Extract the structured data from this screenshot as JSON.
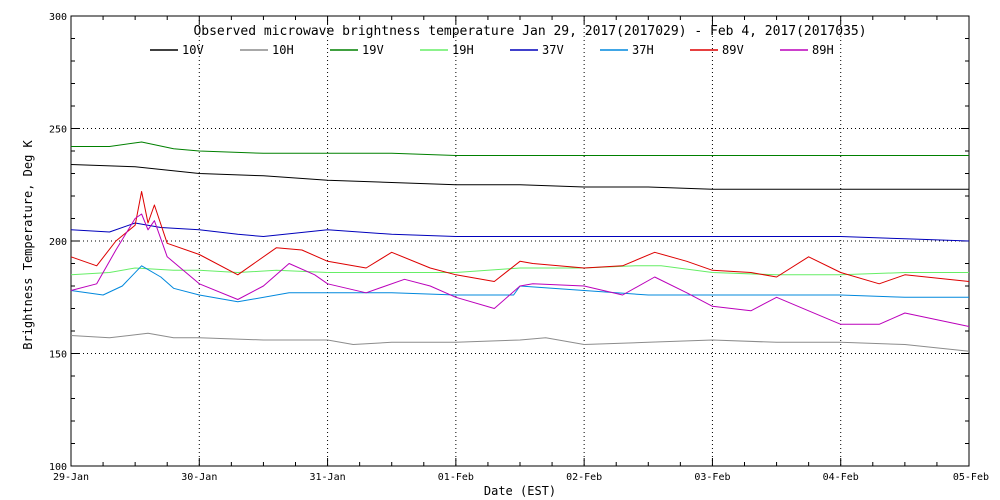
{
  "chart_data": {
    "type": "line",
    "title": "Observed microwave brightness temperature Jan 29, 2017(2017029) - Feb  4, 2017(2017035)",
    "xlabel": "Date (EST)",
    "ylabel": "Brightness Temperature, Deg K",
    "ylim": [
      100,
      300
    ],
    "xlim": [
      0,
      7
    ],
    "x_tick_labels": [
      "29-Jan",
      "30-Jan",
      "31-Jan",
      "01-Feb",
      "02-Feb",
      "03-Feb",
      "04-Feb",
      "05-Feb"
    ],
    "y_ticks": [
      100,
      150,
      200,
      250,
      300
    ],
    "y_grid": [
      150,
      200,
      250
    ],
    "legend_placement": "top",
    "series": [
      {
        "name": "10V",
        "color": "#000000",
        "x": [
          0,
          0.5,
          1,
          1.5,
          2,
          2.5,
          3,
          3.5,
          4,
          4.5,
          5,
          5.5,
          6,
          6.5,
          7
        ],
        "values": [
          234,
          233,
          230,
          229,
          227,
          226,
          225,
          225,
          224,
          224,
          223,
          223,
          223,
          223,
          223
        ]
      },
      {
        "name": "10H",
        "color": "#8c8c8c",
        "x": [
          0,
          0.3,
          0.6,
          0.8,
          1,
          1.5,
          2,
          2.2,
          2.5,
          3,
          3.5,
          3.7,
          4,
          4.5,
          5,
          5.5,
          6,
          6.5,
          7
        ],
        "values": [
          158,
          157,
          159,
          157,
          157,
          156,
          156,
          154,
          155,
          155,
          156,
          157,
          154,
          155,
          156,
          155,
          155,
          154,
          151
        ]
      },
      {
        "name": "19V",
        "color": "#008000",
        "x": [
          0,
          0.3,
          0.55,
          0.8,
          1,
          1.5,
          2,
          2.5,
          3,
          3.5,
          4,
          4.5,
          5,
          5.5,
          6,
          6.5,
          7
        ],
        "values": [
          242,
          242,
          244,
          241,
          240,
          239,
          239,
          239,
          238,
          238,
          238,
          238,
          238,
          238,
          238,
          238,
          238
        ]
      },
      {
        "name": "19H",
        "color": "#66ee66",
        "x": [
          0,
          0.3,
          0.5,
          0.8,
          1,
          1.3,
          1.6,
          2,
          2.5,
          3,
          3.5,
          4,
          4.4,
          4.6,
          5,
          5.5,
          6,
          6.5,
          7
        ],
        "values": [
          185,
          186,
          188,
          187,
          187,
          186,
          187,
          186,
          186,
          186,
          188,
          188,
          189,
          189,
          186,
          185,
          185,
          186,
          186
        ]
      },
      {
        "name": "37V",
        "color": "#0000bb",
        "x": [
          0,
          0.3,
          0.5,
          0.7,
          1,
          1.3,
          1.5,
          2,
          2.5,
          3,
          3.5,
          4,
          4.5,
          5,
          5.5,
          6,
          6.5,
          7
        ],
        "values": [
          205,
          204,
          208,
          206,
          205,
          203,
          202,
          205,
          203,
          202,
          202,
          202,
          202,
          202,
          202,
          202,
          201,
          200
        ]
      },
      {
        "name": "37H",
        "color": "#0088dd",
        "x": [
          0,
          0.25,
          0.4,
          0.55,
          0.7,
          0.8,
          1,
          1.3,
          1.7,
          2,
          2.5,
          3,
          3.45,
          3.5,
          4,
          4.5,
          5,
          5.5,
          6,
          6.5,
          7
        ],
        "values": [
          178,
          176,
          180,
          189,
          184,
          179,
          176,
          173,
          177,
          177,
          177,
          176,
          176,
          180,
          178,
          176,
          176,
          176,
          176,
          175,
          175
        ]
      },
      {
        "name": "89V",
        "color": "#dd0000",
        "x": [
          0,
          0.2,
          0.35,
          0.5,
          0.55,
          0.6,
          0.65,
          0.75,
          1,
          1.3,
          1.6,
          1.8,
          2,
          2.3,
          2.5,
          2.8,
          3,
          3.3,
          3.5,
          3.6,
          4,
          4.3,
          4.55,
          4.8,
          5,
          5.3,
          5.5,
          5.75,
          6,
          6.3,
          6.5,
          7
        ],
        "values": [
          193,
          189,
          200,
          207,
          222,
          208,
          216,
          199,
          194,
          185,
          197,
          196,
          191,
          188,
          195,
          188,
          185,
          182,
          191,
          190,
          188,
          189,
          195,
          191,
          187,
          186,
          184,
          193,
          186,
          181,
          185,
          182
        ]
      },
      {
        "name": "89H",
        "color": "#bb00bb",
        "x": [
          0,
          0.2,
          0.35,
          0.5,
          0.55,
          0.6,
          0.65,
          0.75,
          1,
          1.3,
          1.5,
          1.7,
          1.9,
          2,
          2.3,
          2.6,
          2.8,
          3,
          3.3,
          3.5,
          3.6,
          4,
          4.3,
          4.55,
          4.8,
          5,
          5.3,
          5.5,
          5.75,
          6,
          6.3,
          6.5,
          7
        ],
        "values": [
          178,
          181,
          196,
          210,
          212,
          205,
          209,
          193,
          181,
          174,
          180,
          190,
          185,
          181,
          177,
          183,
          180,
          175,
          170,
          180,
          181,
          180,
          176,
          184,
          177,
          171,
          169,
          175,
          169,
          163,
          163,
          168,
          162
        ]
      }
    ]
  }
}
